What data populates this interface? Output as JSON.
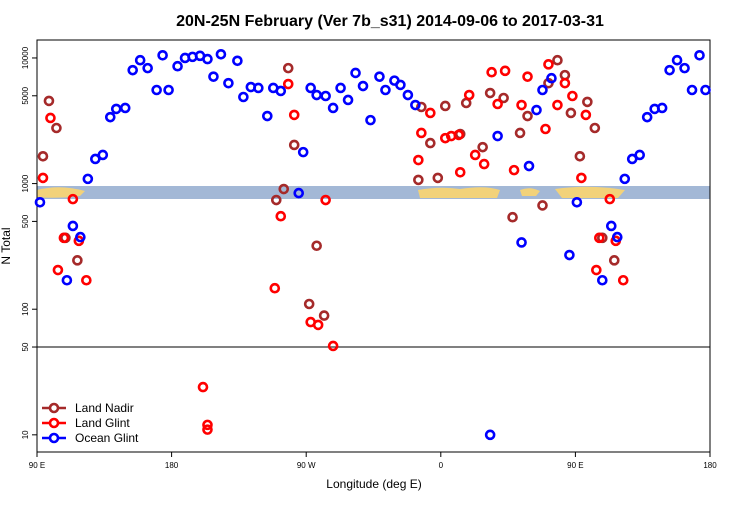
{
  "chart_data": {
    "type": "scatter",
    "title": "20N-25N February (Ver 7b_s31)   2014-09-06 to 2017-03-31",
    "x_label": "Longitude (deg E)",
    "y_label": "N Total",
    "log_y": true,
    "xlim": [
      90,
      540
    ],
    "ylim": [
      7.3,
      13900
    ],
    "xticks": [
      {
        "value": 90,
        "label": "90 E"
      },
      {
        "value": 180,
        "label": "180"
      },
      {
        "value": 270,
        "label": "90 W"
      },
      {
        "value": 360,
        "label": "0"
      },
      {
        "value": 450,
        "label": "90 E"
      },
      {
        "value": 540,
        "label": "180"
      }
    ],
    "yticks": [
      10,
      50,
      100,
      500,
      1000,
      5000,
      10000
    ],
    "hline": 50,
    "legend": "bottom-left",
    "series": [
      {
        "name": "Land Nadir",
        "color": "#a52a2a",
        "x": [
          94,
          98,
          103,
          109,
          117,
          250,
          255,
          258,
          262,
          272,
          277,
          282,
          345,
          347,
          353,
          358,
          363,
          373,
          377,
          388,
          393,
          402,
          408,
          413,
          418,
          428,
          432,
          438,
          443,
          447,
          453,
          458,
          463,
          468,
          476
        ],
        "values": [
          1650,
          4550,
          2770,
          370,
          245,
          740,
          905,
          8300,
          2030,
          110,
          320,
          89,
          1070,
          4070,
          2100,
          1110,
          4150,
          2480,
          4380,
          1950,
          5260,
          4800,
          540,
          2530,
          3450,
          670,
          6300,
          9600,
          7300,
          3650,
          1650,
          4470,
          2770,
          370,
          245
        ]
      },
      {
        "name": "Land Glint",
        "color": "#ff0000",
        "x": [
          94,
          99,
          104,
          108,
          114,
          118,
          123,
          201,
          204,
          204,
          249,
          253,
          258,
          262,
          273,
          278,
          283,
          288,
          345,
          347,
          353,
          363,
          367,
          372,
          373,
          379,
          383,
          389,
          394,
          398,
          403,
          409,
          414,
          418,
          430,
          432,
          438,
          443,
          448,
          454,
          457,
          464,
          466,
          473,
          477,
          482
        ],
        "values": [
          1110,
          3330,
          205,
          370,
          752,
          350,
          170,
          24,
          12,
          11,
          147,
          550,
          6200,
          3520,
          79,
          75,
          740,
          51,
          1540,
          2530,
          3650,
          2300,
          2390,
          2440,
          1230,
          5070,
          1690,
          1430,
          7700,
          4300,
          7900,
          1280,
          4220,
          7100,
          2720,
          8900,
          4220,
          6300,
          4980,
          1110,
          3520,
          205,
          370,
          752,
          350,
          170
        ]
      },
      {
        "name": "Ocean Glint",
        "color": "#0000ff",
        "x": [
          92,
          110,
          114,
          119,
          124,
          129,
          134,
          139,
          143,
          149,
          154,
          159,
          164,
          170,
          174,
          178,
          184,
          189,
          194,
          199,
          204,
          208,
          213,
          218,
          224,
          228,
          233,
          238,
          244,
          248,
          253,
          265,
          268,
          273,
          277,
          283,
          288,
          293,
          298,
          303,
          308,
          313,
          319,
          323,
          329,
          333,
          338,
          343,
          393,
          398,
          414,
          419,
          424,
          428,
          434,
          446,
          451,
          468,
          474,
          478,
          483,
          488,
          493,
          498,
          503,
          508,
          513,
          518,
          523,
          528,
          533,
          537
        ],
        "values": [
          710,
          170,
          460,
          375,
          1090,
          1570,
          1690,
          3380,
          3930,
          4000,
          8000,
          9600,
          8300,
          5560,
          10500,
          5560,
          8600,
          10000,
          10200,
          10400,
          9800,
          7100,
          10700,
          6300,
          9500,
          4890,
          5870,
          5770,
          3450,
          5770,
          5460,
          840,
          1780,
          5770,
          5070,
          4980,
          4000,
          5770,
          4630,
          7600,
          5980,
          3200,
          7100,
          5560,
          6600,
          6100,
          5070,
          4220,
          10,
          2390,
          340,
          1380,
          3850,
          5560,
          6900,
          270,
          710,
          170,
          460,
          375,
          1090,
          1570,
          1690,
          3380,
          3930,
          4000,
          8000,
          9600,
          8300,
          5560,
          10500,
          5560
        ]
      }
    ]
  }
}
